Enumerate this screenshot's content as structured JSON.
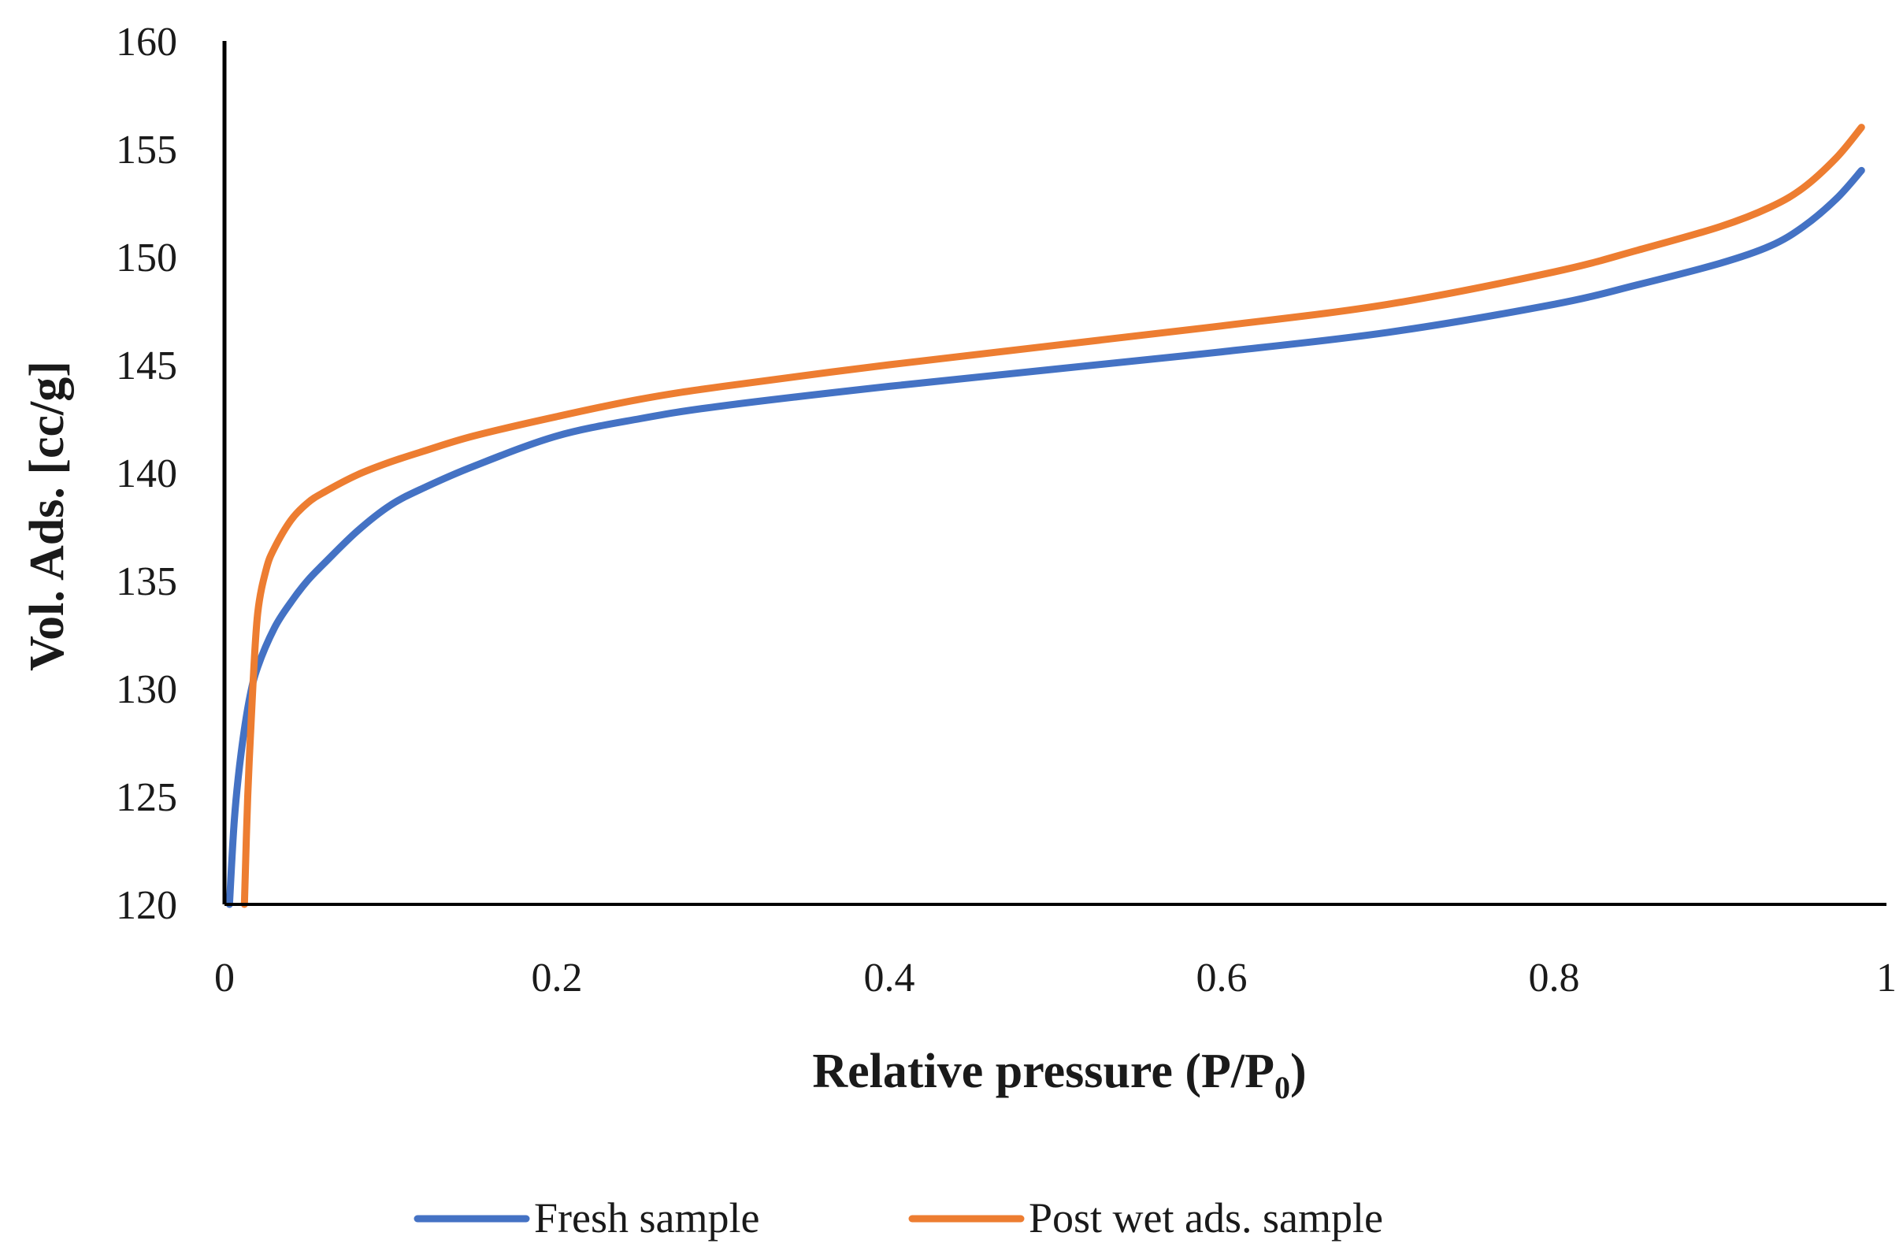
{
  "chart_data": {
    "type": "line",
    "title": "",
    "xlabel": "Relative pressure (P/P",
    "xlabel_subscript": "0",
    "xlabel_suffix": ")",
    "ylabel": "Vol. Ads. [cc/g]",
    "xlim": [
      0,
      1
    ],
    "ylim": [
      120,
      160
    ],
    "x_ticks": [
      0,
      0.2,
      0.4,
      0.6,
      0.8,
      1
    ],
    "x_tick_labels": [
      "0",
      "0.2",
      "0.4",
      "0.6",
      "0.8",
      "1"
    ],
    "y_ticks": [
      120,
      125,
      130,
      135,
      140,
      145,
      150,
      155,
      160
    ],
    "y_tick_labels": [
      "120",
      "125",
      "130",
      "135",
      "140",
      "145",
      "150",
      "155",
      "160"
    ],
    "grid": false,
    "legend_position": "bottom",
    "series": [
      {
        "name": "Fresh sample",
        "color": "#4472C4",
        "x": [
          0.003,
          0.006,
          0.01,
          0.015,
          0.02,
          0.03,
          0.04,
          0.05,
          0.06,
          0.08,
          0.1,
          0.12,
          0.15,
          0.2,
          0.25,
          0.3,
          0.4,
          0.5,
          0.6,
          0.7,
          0.8,
          0.85,
          0.9,
          0.93,
          0.95,
          0.97,
          0.985
        ],
        "y": [
          120,
          124,
          127,
          129.5,
          131,
          132.8,
          134,
          135,
          135.8,
          137.3,
          138.5,
          139.3,
          140.3,
          141.7,
          142.5,
          143.1,
          144,
          144.8,
          145.6,
          146.5,
          147.8,
          148.7,
          149.7,
          150.5,
          151.4,
          152.7,
          154
        ]
      },
      {
        "name": "Post wet ads. sample",
        "color": "#ED7D31",
        "x": [
          0.012,
          0.014,
          0.017,
          0.02,
          0.025,
          0.03,
          0.04,
          0.05,
          0.06,
          0.08,
          0.1,
          0.12,
          0.15,
          0.2,
          0.25,
          0.3,
          0.4,
          0.5,
          0.6,
          0.7,
          0.8,
          0.85,
          0.9,
          0.93,
          0.95,
          0.97,
          0.985
        ],
        "y": [
          120,
          125,
          130,
          133.5,
          135.5,
          136.5,
          137.8,
          138.6,
          139.1,
          139.9,
          140.5,
          141,
          141.7,
          142.6,
          143.4,
          144,
          145,
          145.9,
          146.8,
          147.8,
          149.3,
          150.3,
          151.4,
          152.3,
          153.2,
          154.6,
          156
        ]
      }
    ]
  }
}
